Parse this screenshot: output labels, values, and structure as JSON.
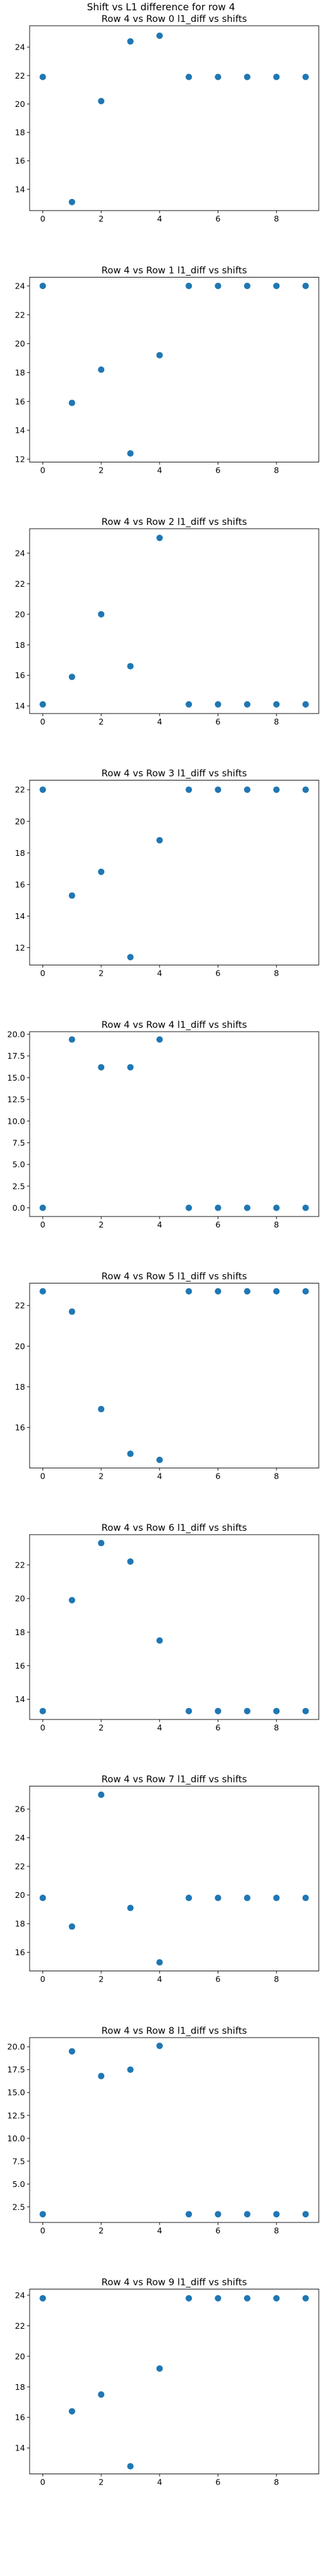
{
  "figure": {
    "suptitle": "Shift vs L1 difference for row 4",
    "marker_color": "#1f77b4"
  },
  "chart_data": [
    {
      "type": "scatter",
      "title": "Row 4 vs Row 0 l1_diff vs shifts",
      "x": [
        0,
        1,
        2,
        3,
        4,
        5,
        6,
        7,
        8,
        9
      ],
      "y": [
        21.9,
        13.1,
        20.2,
        24.4,
        24.8,
        21.9,
        21.9,
        21.9,
        21.9,
        21.9
      ],
      "ylim": [
        12.5,
        25.5
      ],
      "xlim": [
        -0.45,
        9.45
      ],
      "yticks": [
        14,
        16,
        18,
        20,
        22,
        24
      ],
      "xticks": [
        0,
        2,
        4,
        6,
        8
      ],
      "ytick_labels": [
        "14",
        "16",
        "18",
        "20",
        "22",
        "24"
      ],
      "xtick_labels": [
        "0",
        "2",
        "4",
        "6",
        "8"
      ],
      "grid": false
    },
    {
      "type": "scatter",
      "title": "Row 4 vs Row 1 l1_diff vs shifts",
      "x": [
        0,
        1,
        2,
        3,
        4,
        5,
        6,
        7,
        8,
        9
      ],
      "y": [
        24.0,
        15.9,
        18.2,
        12.4,
        19.2,
        24.0,
        24.0,
        24.0,
        24.0,
        24.0
      ],
      "ylim": [
        11.8,
        24.6
      ],
      "xlim": [
        -0.45,
        9.45
      ],
      "yticks": [
        12,
        14,
        16,
        18,
        20,
        22,
        24
      ],
      "xticks": [
        0,
        2,
        4,
        6,
        8
      ],
      "ytick_labels": [
        "12",
        "14",
        "16",
        "18",
        "20",
        "22",
        "24"
      ],
      "xtick_labels": [
        "0",
        "2",
        "4",
        "6",
        "8"
      ],
      "grid": false
    },
    {
      "type": "scatter",
      "title": "Row 4 vs Row 2 l1_diff vs shifts",
      "x": [
        0,
        1,
        2,
        3,
        4,
        5,
        6,
        7,
        8,
        9
      ],
      "y": [
        14.1,
        15.9,
        20.0,
        16.6,
        25.0,
        14.1,
        14.1,
        14.1,
        14.1,
        14.1
      ],
      "ylim": [
        13.5,
        25.6
      ],
      "xlim": [
        -0.45,
        9.45
      ],
      "yticks": [
        14,
        16,
        18,
        20,
        22,
        24
      ],
      "xticks": [
        0,
        2,
        4,
        6,
        8
      ],
      "ytick_labels": [
        "14",
        "16",
        "18",
        "20",
        "22",
        "24"
      ],
      "xtick_labels": [
        "0",
        "2",
        "4",
        "6",
        "8"
      ],
      "grid": false
    },
    {
      "type": "scatter",
      "title": "Row 4 vs Row 3 l1_diff vs shifts",
      "x": [
        0,
        1,
        2,
        3,
        4,
        5,
        6,
        7,
        8,
        9
      ],
      "y": [
        22.0,
        15.3,
        16.8,
        11.4,
        18.8,
        22.0,
        22.0,
        22.0,
        22.0,
        22.0
      ],
      "ylim": [
        10.9,
        22.6
      ],
      "xlim": [
        -0.45,
        9.45
      ],
      "yticks": [
        12,
        14,
        16,
        18,
        20,
        22
      ],
      "xticks": [
        0,
        2,
        4,
        6,
        8
      ],
      "ytick_labels": [
        "12",
        "14",
        "16",
        "18",
        "20",
        "22"
      ],
      "xtick_labels": [
        "0",
        "2",
        "4",
        "6",
        "8"
      ],
      "grid": false
    },
    {
      "type": "scatter",
      "title": "Row 4 vs Row 4 l1_diff vs shifts",
      "x": [
        0,
        1,
        2,
        3,
        4,
        5,
        6,
        7,
        8,
        9
      ],
      "y": [
        0.0,
        19.4,
        16.2,
        16.2,
        19.4,
        0.0,
        0.0,
        0.0,
        0.0,
        0.0
      ],
      "ylim": [
        -1.0,
        20.3
      ],
      "xlim": [
        -0.45,
        9.45
      ],
      "yticks": [
        0,
        2.5,
        5,
        7.5,
        10,
        12.5,
        15,
        17.5,
        20
      ],
      "xticks": [
        0,
        2,
        4,
        6,
        8
      ],
      "ytick_labels": [
        "0.0",
        "2.5",
        "5.0",
        "7.5",
        "10.0",
        "12.5",
        "15.0",
        "17.5",
        "20.0"
      ],
      "xtick_labels": [
        "0",
        "2",
        "4",
        "6",
        "8"
      ],
      "grid": false
    },
    {
      "type": "scatter",
      "title": "Row 4 vs Row 5 l1_diff vs shifts",
      "x": [
        0,
        1,
        2,
        3,
        4,
        5,
        6,
        7,
        8,
        9
      ],
      "y": [
        22.7,
        21.7,
        16.9,
        14.7,
        14.4,
        22.7,
        22.7,
        22.7,
        22.7,
        22.7
      ],
      "ylim": [
        14.0,
        23.1
      ],
      "xlim": [
        -0.45,
        9.45
      ],
      "yticks": [
        16,
        18,
        20,
        22
      ],
      "xticks": [
        0,
        2,
        4,
        6,
        8
      ],
      "ytick_labels": [
        "16",
        "18",
        "20",
        "22"
      ],
      "xtick_labels": [
        "0",
        "2",
        "4",
        "6",
        "8"
      ],
      "grid": false
    },
    {
      "type": "scatter",
      "title": "Row 4 vs Row 6 l1_diff vs shifts",
      "x": [
        0,
        1,
        2,
        3,
        4,
        5,
        6,
        7,
        8,
        9
      ],
      "y": [
        13.3,
        19.9,
        23.3,
        22.2,
        17.5,
        13.3,
        13.3,
        13.3,
        13.3,
        13.3
      ],
      "ylim": [
        12.8,
        23.8
      ],
      "xlim": [
        -0.45,
        9.45
      ],
      "yticks": [
        14,
        16,
        18,
        20,
        22
      ],
      "xticks": [
        0,
        2,
        4,
        6,
        8
      ],
      "ytick_labels": [
        "14",
        "16",
        "18",
        "20",
        "22"
      ],
      "xtick_labels": [
        "0",
        "2",
        "4",
        "6",
        "8"
      ],
      "grid": false
    },
    {
      "type": "scatter",
      "title": "Row 4 vs Row 7 l1_diff vs shifts",
      "x": [
        0,
        1,
        2,
        3,
        4,
        5,
        6,
        7,
        8,
        9
      ],
      "y": [
        19.8,
        17.8,
        27.0,
        19.1,
        15.3,
        19.8,
        19.8,
        19.8,
        19.8,
        19.8
      ],
      "ylim": [
        14.7,
        27.6
      ],
      "xlim": [
        -0.45,
        9.45
      ],
      "yticks": [
        16,
        18,
        20,
        22,
        24,
        26
      ],
      "xticks": [
        0,
        2,
        4,
        6,
        8
      ],
      "ytick_labels": [
        "16",
        "18",
        "20",
        "22",
        "24",
        "26"
      ],
      "xtick_labels": [
        "0",
        "2",
        "4",
        "6",
        "8"
      ],
      "grid": false
    },
    {
      "type": "scatter",
      "title": "Row 4 vs Row 8 l1_diff vs shifts",
      "x": [
        0,
        1,
        2,
        3,
        4,
        5,
        6,
        7,
        8,
        9
      ],
      "y": [
        1.7,
        19.5,
        16.8,
        17.5,
        20.1,
        1.7,
        1.7,
        1.7,
        1.7,
        1.7
      ],
      "ylim": [
        0.8,
        21.0
      ],
      "xlim": [
        -0.45,
        9.45
      ],
      "yticks": [
        2.5,
        5,
        7.5,
        10,
        12.5,
        15,
        17.5,
        20
      ],
      "xticks": [
        0,
        2,
        4,
        6,
        8
      ],
      "ytick_labels": [
        "2.5",
        "5.0",
        "7.5",
        "10.0",
        "12.5",
        "15.0",
        "17.5",
        "20.0"
      ],
      "xtick_labels": [
        "0",
        "2",
        "4",
        "6",
        "8"
      ],
      "grid": false
    },
    {
      "type": "scatter",
      "title": "Row 4 vs Row 9 l1_diff vs shifts",
      "x": [
        0,
        1,
        2,
        3,
        4,
        5,
        6,
        7,
        8,
        9
      ],
      "y": [
        23.8,
        16.4,
        17.5,
        12.8,
        19.2,
        23.8,
        23.8,
        23.8,
        23.8,
        23.8
      ],
      "ylim": [
        12.3,
        24.4
      ],
      "xlim": [
        -0.45,
        9.45
      ],
      "yticks": [
        14,
        16,
        18,
        20,
        22,
        24
      ],
      "xticks": [
        0,
        2,
        4,
        6,
        8
      ],
      "ytick_labels": [
        "14",
        "16",
        "18",
        "20",
        "22",
        "24"
      ],
      "xtick_labels": [
        "0",
        "2",
        "4",
        "6",
        "8"
      ],
      "grid": false
    }
  ]
}
